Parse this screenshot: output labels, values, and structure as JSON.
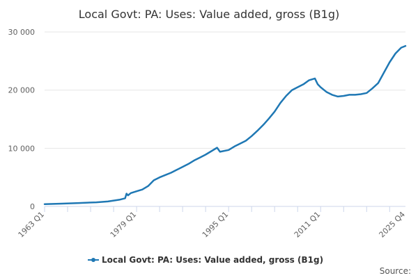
{
  "chart_data": {
    "type": "line",
    "title": "Local Govt: PA: Uses: Value added, gross (B1g)",
    "xlabel": "",
    "ylabel": "",
    "x_tick_labels": [
      "1963 Q1",
      "1979 Q1",
      "1995 Q1",
      "2011 Q1",
      "2025 Q4"
    ],
    "y_tick_labels": [
      "0",
      "10 000",
      "20 000",
      "30 000"
    ],
    "ylim": [
      0,
      30000
    ],
    "grid": "horizontal",
    "legend_position": "bottom",
    "source_label": "Source:",
    "series": [
      {
        "name": "Local Govt: PA: Uses: Value added, gross (B1g)",
        "color": "#1f78b4",
        "points": [
          [
            "1963 Q1",
            400
          ],
          [
            "1966 Q1",
            480
          ],
          [
            "1969 Q1",
            580
          ],
          [
            "1972 Q1",
            700
          ],
          [
            "1974 Q1",
            850
          ],
          [
            "1976 Q1",
            1150
          ],
          [
            "1977 Q1",
            1400
          ],
          [
            "1977 Q2",
            2200
          ],
          [
            "1977 Q3",
            1900
          ],
          [
            "1978 Q1",
            2300
          ],
          [
            "1979 Q1",
            2600
          ],
          [
            "1980 Q1",
            2900
          ],
          [
            "1981 Q1",
            3500
          ],
          [
            "1982 Q1",
            4500
          ],
          [
            "1983 Q1",
            5000
          ],
          [
            "1984 Q1",
            5400
          ],
          [
            "1985 Q1",
            5800
          ],
          [
            "1986 Q1",
            6300
          ],
          [
            "1987 Q1",
            6800
          ],
          [
            "1988 Q1",
            7300
          ],
          [
            "1989 Q1",
            7900
          ],
          [
            "1990 Q1",
            8400
          ],
          [
            "1991 Q1",
            8900
          ],
          [
            "1992 Q1",
            9500
          ],
          [
            "1993 Q1",
            10100
          ],
          [
            "1993 Q3",
            9400
          ],
          [
            "1994 Q1",
            9500
          ],
          [
            "1995 Q1",
            9700
          ],
          [
            "1996 Q1",
            10300
          ],
          [
            "1997 Q1",
            10800
          ],
          [
            "1998 Q1",
            11300
          ],
          [
            "1999 Q1",
            12100
          ],
          [
            "2000 Q1",
            13000
          ],
          [
            "2001 Q1",
            14000
          ],
          [
            "2002 Q1",
            15100
          ],
          [
            "2003 Q1",
            16300
          ],
          [
            "2004 Q1",
            17800
          ],
          [
            "2005 Q1",
            19000
          ],
          [
            "2006 Q1",
            20000
          ],
          [
            "2007 Q1",
            20500
          ],
          [
            "2008 Q1",
            21000
          ],
          [
            "2009 Q1",
            21700
          ],
          [
            "2010 Q1",
            22000
          ],
          [
            "2010 Q3",
            21000
          ],
          [
            "2011 Q1",
            20500
          ],
          [
            "2012 Q1",
            19700
          ],
          [
            "2013 Q1",
            19200
          ],
          [
            "2014 Q1",
            18900
          ],
          [
            "2015 Q1",
            19000
          ],
          [
            "2016 Q1",
            19200
          ],
          [
            "2017 Q1",
            19200
          ],
          [
            "2018 Q1",
            19300
          ],
          [
            "2019 Q1",
            19500
          ],
          [
            "2020 Q1",
            20300
          ],
          [
            "2021 Q1",
            21200
          ],
          [
            "2022 Q1",
            23000
          ],
          [
            "2023 Q1",
            24800
          ],
          [
            "2024 Q1",
            26300
          ],
          [
            "2025 Q1",
            27300
          ],
          [
            "2025 Q4",
            27600
          ]
        ]
      }
    ]
  }
}
